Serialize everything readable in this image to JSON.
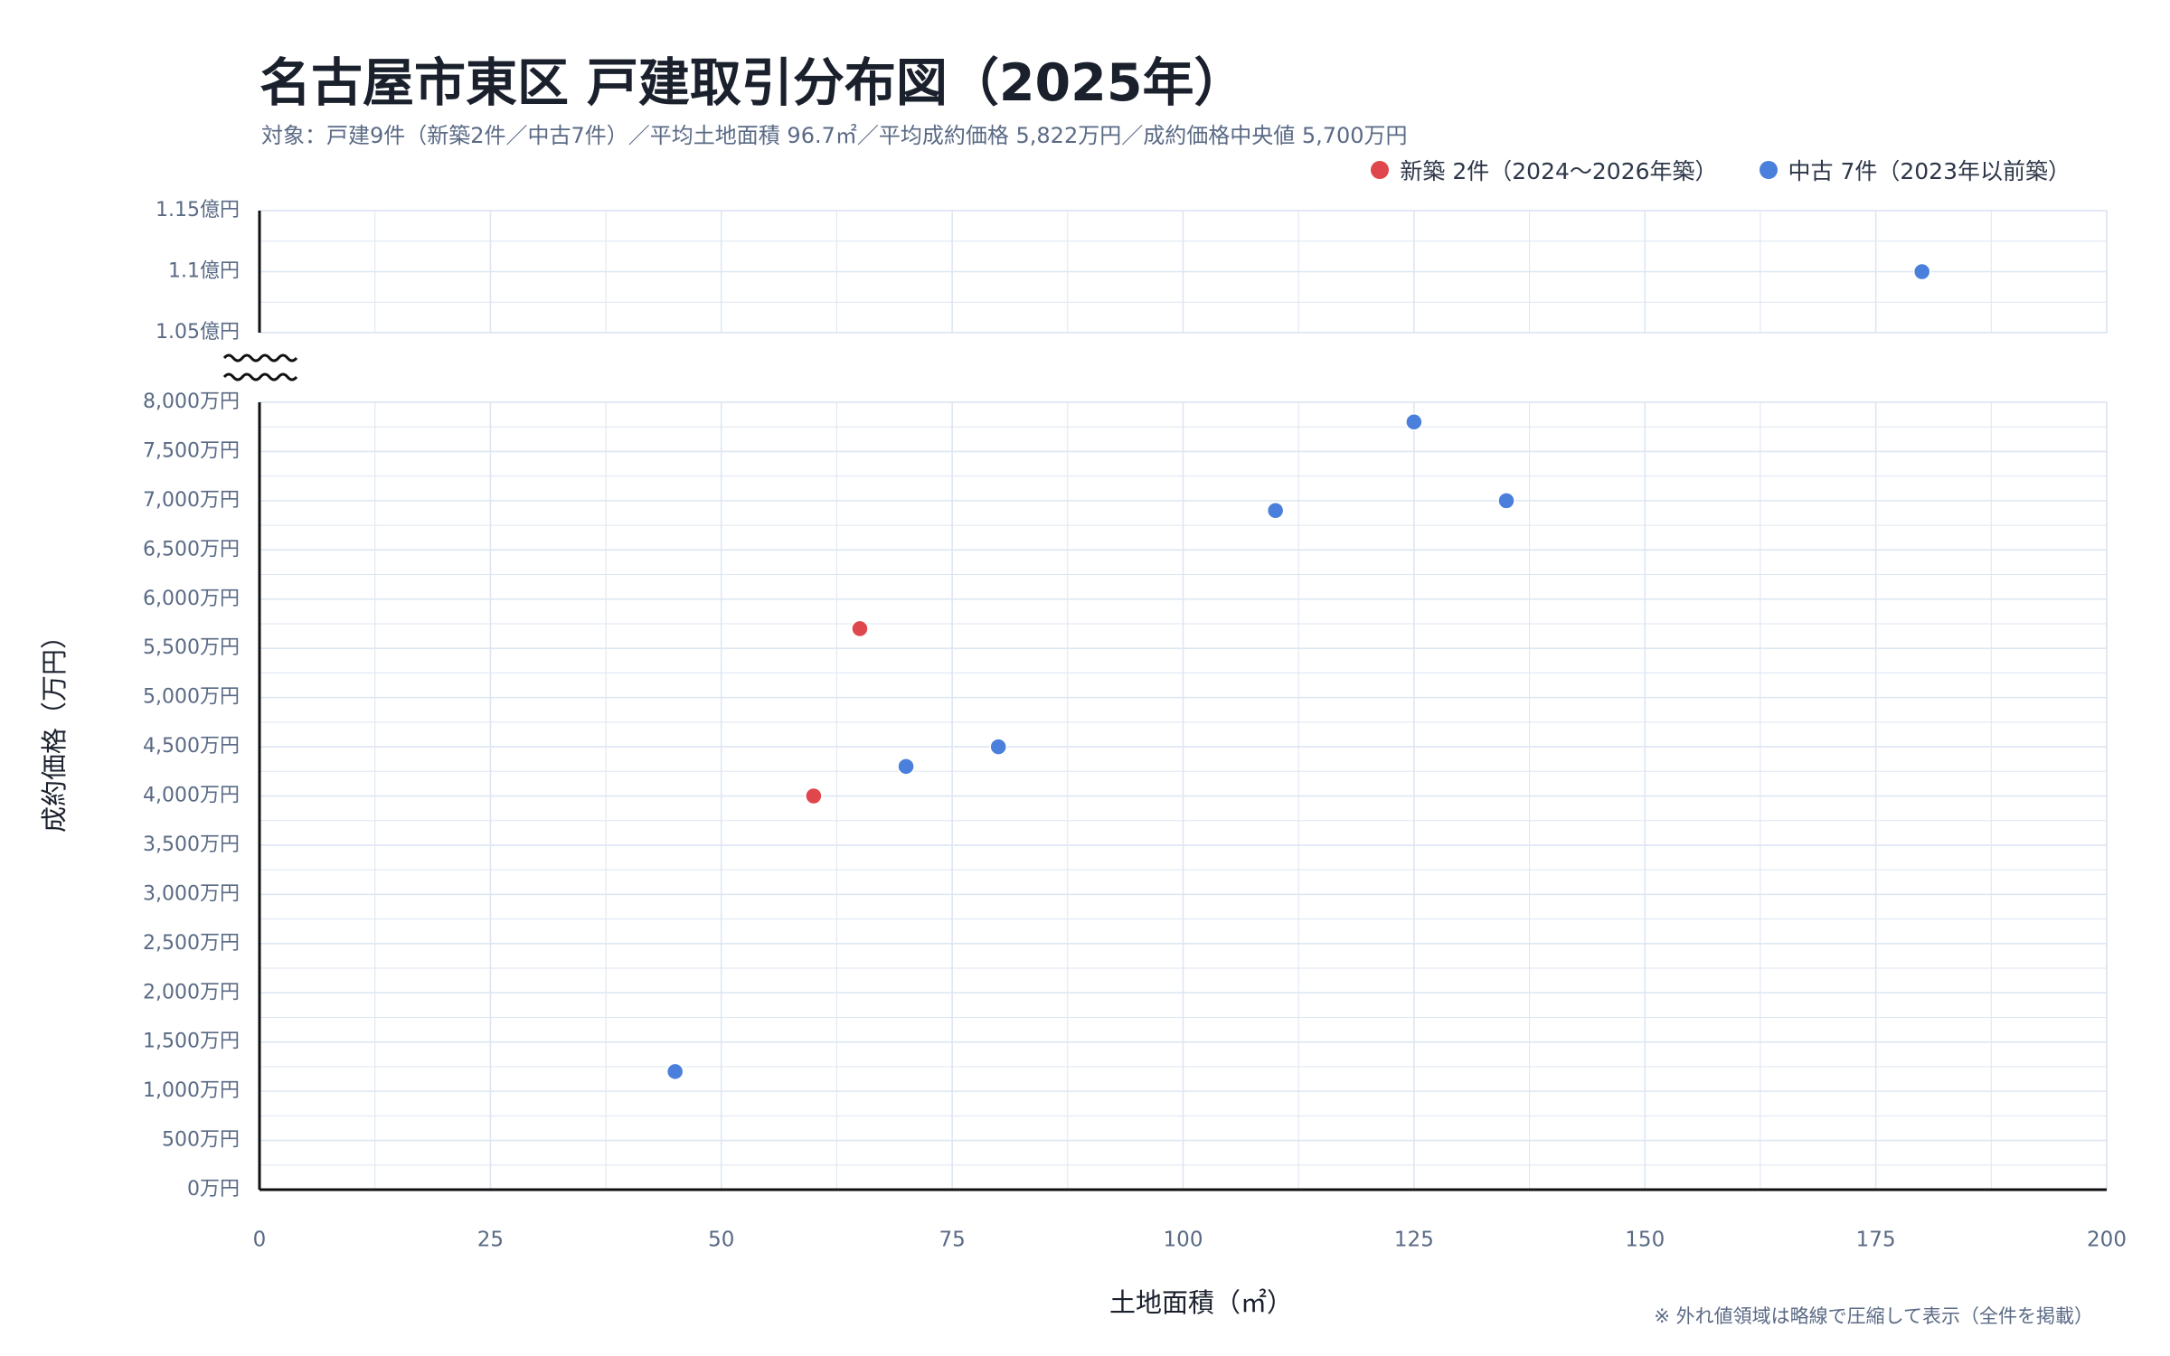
{
  "title": "名古屋市東区 戸建取引分布図（2025年）",
  "subtitle": "対象：戸建9件（新築2件／中古7件）／平均土地面積 96.7㎡／平均成約価格 5,822万円／成約価格中央値 5,700万円",
  "footnote": "※ 外れ値領域は略線で圧縮して表示（全件を掲載）",
  "legend": {
    "new_label": "新築 2件（2024〜2026年築）",
    "used_label": "中古 7件（2023年以前築）"
  },
  "colors": {
    "new": "#e0474c",
    "used": "#4a7fdc",
    "axis": "#111111",
    "grid": "#dde6f2",
    "tick": "#5a6a85"
  },
  "chart_data": {
    "type": "scatter",
    "title": "名古屋市東区 戸建取引分布図（2025年）",
    "xlabel": "土地面積（㎡）",
    "ylabel": "成約価格（万円）",
    "xlim": [
      0,
      200
    ],
    "x_ticks": [
      0,
      25,
      50,
      75,
      100,
      125,
      150,
      175,
      200
    ],
    "y_lower_lim": [
      0,
      8000
    ],
    "y_lower_ticks": [
      0,
      500,
      1000,
      1500,
      2000,
      2500,
      3000,
      3500,
      4000,
      4500,
      5000,
      5500,
      6000,
      6500,
      7000,
      7500,
      8000
    ],
    "y_lower_tick_labels": [
      "0万円",
      "500万円",
      "1,000万円",
      "1,500万円",
      "2,000万円",
      "2,500万円",
      "3,000万円",
      "3,500万円",
      "4,000万円",
      "4,500万円",
      "5,000万円",
      "5,500万円",
      "6,000万円",
      "6,500万円",
      "7,000万円",
      "7,500万円",
      "8,000万円"
    ],
    "y_upper_lim": [
      10500,
      11500
    ],
    "y_upper_ticks": [
      10500,
      11000,
      11500
    ],
    "y_upper_tick_labels": [
      "1.05億円",
      "1.1億円",
      "1.15億円"
    ],
    "axis_break": true,
    "grid": true,
    "legend_position": "top-right",
    "series": [
      {
        "name": "新築 2件（2024〜2026年築）",
        "color": "#e0474c",
        "points": [
          {
            "x": 60,
            "y": 4000
          },
          {
            "x": 65,
            "y": 5700
          }
        ]
      },
      {
        "name": "中古 7件（2023年以前築）",
        "color": "#4a7fdc",
        "points": [
          {
            "x": 45,
            "y": 1200
          },
          {
            "x": 70,
            "y": 4300
          },
          {
            "x": 80,
            "y": 4500
          },
          {
            "x": 110,
            "y": 6900
          },
          {
            "x": 125,
            "y": 7800
          },
          {
            "x": 135,
            "y": 7000
          },
          {
            "x": 180,
            "y": 11000
          }
        ]
      }
    ]
  }
}
